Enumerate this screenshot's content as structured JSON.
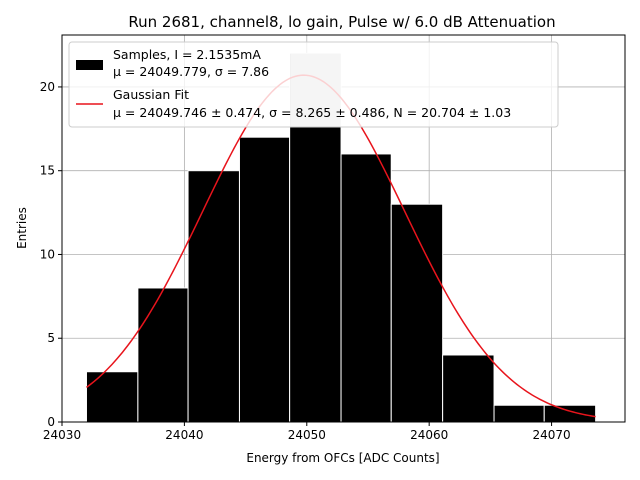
{
  "chart_data": {
    "type": "bar",
    "title": "Run 2681, channel8, lo gain, Pulse w/ 6.0 dB Attenuation",
    "xlabel": "Energy from OFCs [ADC Counts]",
    "ylabel": "Entries",
    "xlim": [
      24030.0,
      24076.0
    ],
    "ylim": [
      0,
      23.1
    ],
    "xticks": [
      24030,
      24040,
      24050,
      24060,
      24070
    ],
    "yticks": [
      0,
      5,
      10,
      15,
      20
    ],
    "grid": true,
    "legend_position": "top-left",
    "bins": [
      {
        "left": 24032.0,
        "right": 24036.2,
        "count": 3
      },
      {
        "left": 24036.2,
        "right": 24040.3,
        "count": 8
      },
      {
        "left": 24040.3,
        "right": 24044.5,
        "count": 15
      },
      {
        "left": 24044.5,
        "right": 24048.6,
        "count": 17
      },
      {
        "left": 24048.6,
        "right": 24052.8,
        "count": 22
      },
      {
        "left": 24052.8,
        "right": 24056.9,
        "count": 16
      },
      {
        "left": 24056.9,
        "right": 24061.1,
        "count": 13
      },
      {
        "left": 24061.1,
        "right": 24065.3,
        "count": 4
      },
      {
        "left": 24065.3,
        "right": 24069.4,
        "count": 1
      },
      {
        "left": 24069.4,
        "right": 24073.6,
        "count": 1
      }
    ],
    "series": [
      {
        "name": "Samples",
        "kind": "histogram",
        "color": "#000000",
        "legend_line1": "Samples, I = 2.1535mA",
        "legend_line2": "μ = 24049.779, σ = 7.86"
      },
      {
        "name": "Gaussian Fit",
        "kind": "line",
        "color": "#e8141c",
        "legend_line1": "Gaussian Fit",
        "legend_line2": "μ = 24049.746 ± 0.474, σ = 8.265 ± 0.486, N = 20.704 ± 1.03",
        "mu": 24049.746,
        "sigma": 8.265,
        "amplitude": 20.704,
        "x_range": [
          24032.0,
          24073.6
        ]
      }
    ]
  },
  "colors": {
    "bar_fill": "#000000",
    "bar_edge": "#ffffff",
    "fit_line": "#e8141c",
    "grid": "#b0b0b0",
    "partial_bar": "#cccccc"
  }
}
